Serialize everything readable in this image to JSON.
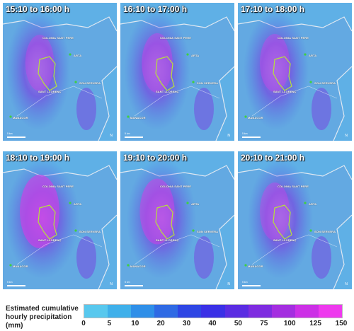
{
  "panels": [
    {
      "title": "15:10 to 16:00  h",
      "intensity": 0.45
    },
    {
      "title": "16:10 to 17:00  h",
      "intensity": 0.55
    },
    {
      "title": "17:10 to 18:00  h",
      "intensity": 0.5
    },
    {
      "title": "18:10 to 19:00  h",
      "intensity": 1.0
    },
    {
      "title": "19:10 to 20:00  h",
      "intensity": 0.75
    },
    {
      "title": "20:10 to 21:00  h",
      "intensity": 0.5
    }
  ],
  "places": {
    "colonia": "COLONIA SANT PERE",
    "arta": "ARTA",
    "son_servera": "SON SERVERA",
    "sant_llorenc": "SANT LLORENÇ",
    "manacor": "MANACOR"
  },
  "scale_label": "5 km",
  "north_label": "N",
  "legend": {
    "title": "Estimated cumulative hourly precipitation (mm)",
    "ticks": [
      "0",
      "5",
      "10",
      "20",
      "30",
      "40",
      "50",
      "75",
      "100",
      "125",
      "150"
    ],
    "colors": [
      "#58c8ee",
      "#3fb0ea",
      "#2f8fe8",
      "#2f6ae4",
      "#2e46e4",
      "#3a30e6",
      "#5a2ce2",
      "#7e2ce0",
      "#a42ee0",
      "#cc30e6",
      "#ee3aee"
    ]
  }
}
